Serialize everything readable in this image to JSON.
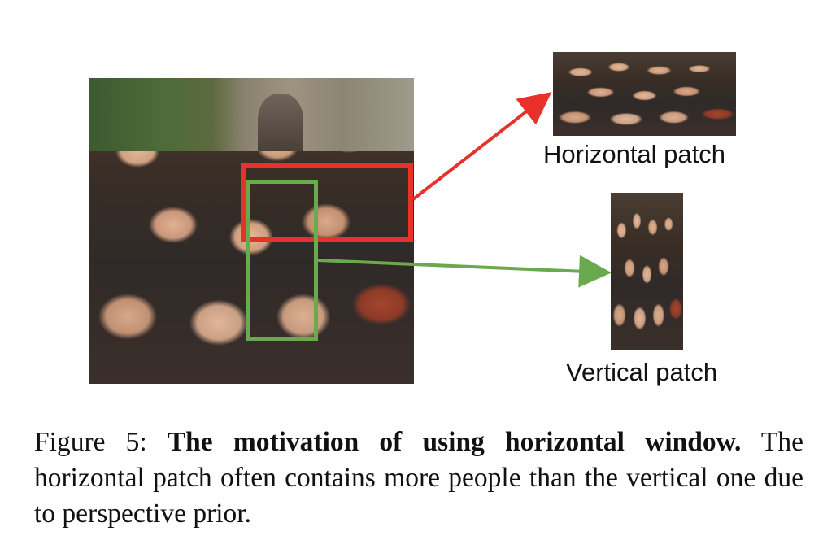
{
  "figure": {
    "panels": {
      "horizontal": {
        "label": "Horizontal patch",
        "box_color": "#e8312a"
      },
      "vertical": {
        "label": "Vertical patch",
        "box_color": "#6aaa4e"
      }
    },
    "caption": {
      "number": "Figure 5:",
      "title": "The motivation of using horizontal window.",
      "body": "The horizontal patch often contains more people than the vertical one due to perspective prior."
    }
  }
}
